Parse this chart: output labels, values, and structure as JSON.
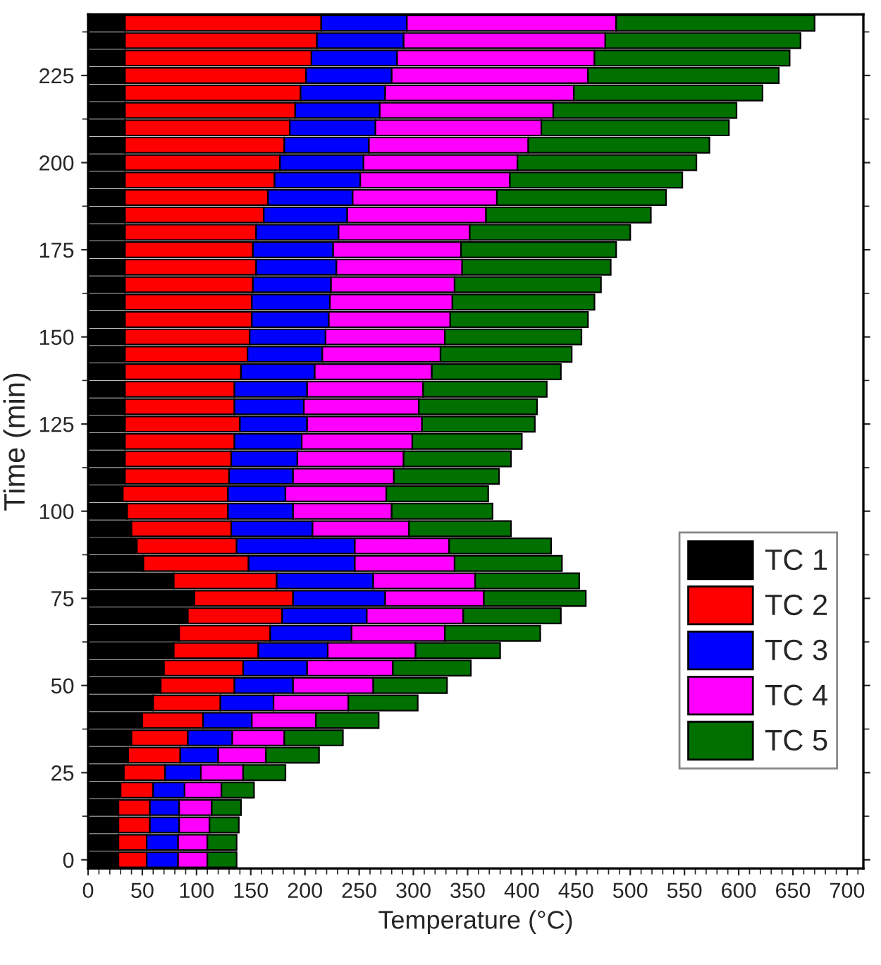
{
  "chart_data": {
    "type": "bar",
    "orientation": "horizontal",
    "stacked": true,
    "xlabel": "Temperature (°C)",
    "ylabel": "Time (min)",
    "x": [
      0,
      5,
      10,
      15,
      20,
      25,
      30,
      35,
      40,
      45,
      50,
      55,
      60,
      65,
      70,
      75,
      80,
      85,
      90,
      95,
      100,
      105,
      110,
      115,
      120,
      125,
      130,
      135,
      140,
      145,
      150,
      155,
      160,
      165,
      170,
      175,
      180,
      185,
      190,
      195,
      200,
      205,
      210,
      215,
      220,
      225,
      230,
      235,
      240
    ],
    "series": [
      {
        "name": "TC 1",
        "color": "#000000",
        "values": [
          28,
          28,
          28,
          28,
          30,
          33,
          37,
          40,
          50,
          60,
          67,
          70,
          79,
          84,
          92,
          98,
          79,
          51,
          45,
          40,
          36,
          32,
          34,
          34,
          34,
          34,
          34,
          34,
          34,
          34,
          34,
          34,
          34,
          34,
          34,
          34,
          34,
          34,
          34,
          34,
          34,
          34,
          34,
          34,
          34,
          34,
          34,
          34,
          34
        ]
      },
      {
        "name": "TC 2",
        "color": "#ff0000",
        "values": [
          26,
          26,
          29,
          29,
          30,
          38,
          48,
          52,
          56,
          62,
          68,
          73,
          78,
          84,
          87,
          91,
          95,
          97,
          92,
          92,
          93,
          97,
          96,
          98,
          101,
          106,
          101,
          101,
          107,
          113,
          115,
          117,
          117,
          118,
          121,
          118,
          121,
          128,
          132,
          138,
          143,
          147,
          152,
          157,
          162,
          167,
          172,
          177,
          181
        ]
      },
      {
        "name": "TC 3",
        "color": "#0000ff",
        "values": [
          29,
          29,
          27,
          27,
          29,
          33,
          35,
          41,
          45,
          49,
          54,
          59,
          64,
          75,
          78,
          85,
          89,
          98,
          109,
          75,
          60,
          53,
          59,
          61,
          62,
          62,
          64,
          67,
          68,
          69,
          70,
          71,
          72,
          72,
          74,
          74,
          76,
          77,
          78,
          79,
          77,
          78,
          79,
          78,
          78,
          79,
          79,
          80,
          79
        ]
      },
      {
        "name": "TC 4",
        "color": "#ff00ff",
        "values": [
          27,
          27,
          28,
          30,
          34,
          39,
          44,
          48,
          59,
          69,
          74,
          79,
          81,
          86,
          89,
          91,
          94,
          92,
          87,
          89,
          91,
          93,
          93,
          98,
          102,
          106,
          106,
          107,
          108,
          109,
          110,
          112,
          113,
          114,
          116,
          118,
          121,
          128,
          133,
          138,
          142,
          147,
          153,
          160,
          174,
          181,
          182,
          186,
          193
        ]
      },
      {
        "name": "TC 5",
        "color": "#007000",
        "values": [
          27,
          27,
          27,
          27,
          30,
          39,
          49,
          54,
          58,
          64,
          68,
          72,
          78,
          88,
          90,
          94,
          96,
          99,
          94,
          94,
          93,
          94,
          97,
          99,
          101,
          104,
          109,
          114,
          119,
          121,
          126,
          127,
          131,
          135,
          137,
          143,
          148,
          152,
          156,
          159,
          165,
          167,
          173,
          169,
          174,
          176,
          180,
          180,
          183
        ]
      }
    ],
    "xlim": [
      0,
      715
    ],
    "xticks": [
      0,
      50,
      100,
      150,
      200,
      250,
      300,
      350,
      400,
      450,
      500,
      550,
      600,
      650,
      700
    ],
    "ylim": [
      -2.5,
      242.5
    ],
    "yticks": [
      0,
      25,
      50,
      75,
      100,
      125,
      150,
      175,
      200,
      225
    ],
    "legend": "lower right",
    "grid": false
  }
}
